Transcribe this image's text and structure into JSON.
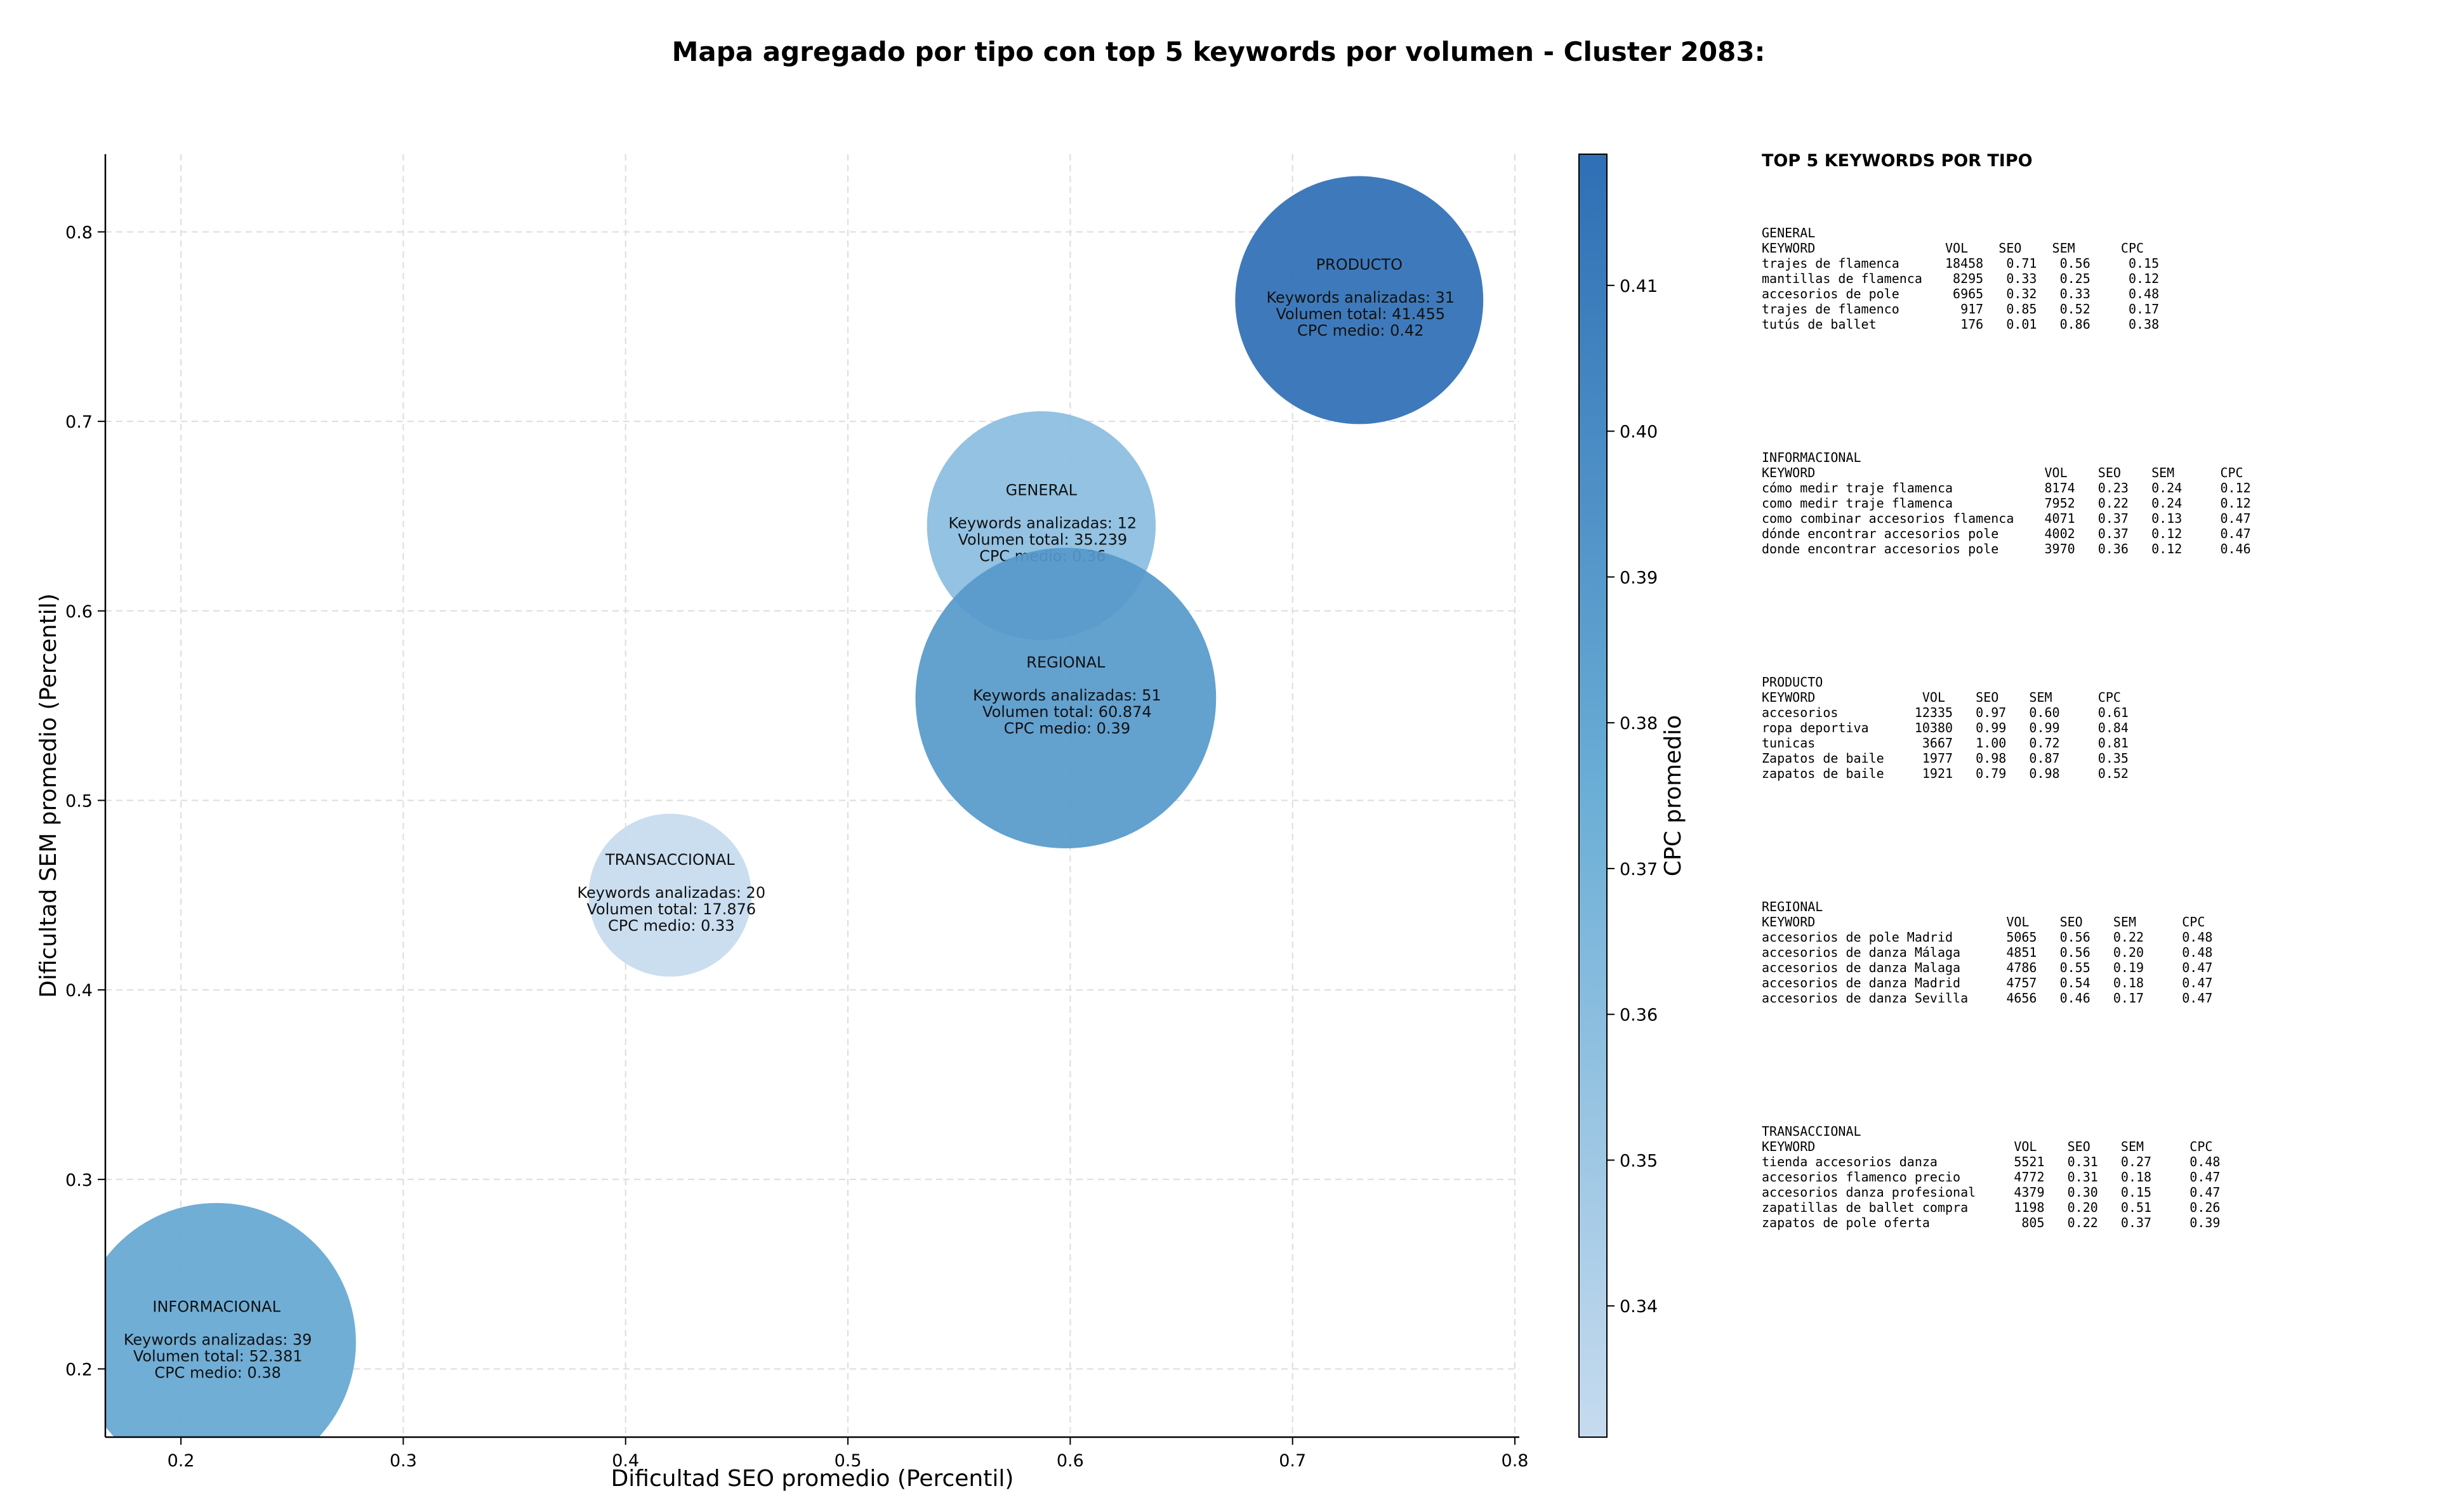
{
  "chart_data": {
    "type": "scatter",
    "title": "Mapa agregado por tipo con top 5 keywords por volumen - Cluster 2083:",
    "xlabel": "Dificultad SEO promedio (Percentil)",
    "ylabel": "Dificultad SEM promedio (Percentil)",
    "xlim": [
      0.166,
      0.802
    ],
    "ylim": [
      0.164,
      0.841
    ],
    "x_ticks": [
      "0.2",
      "0.3",
      "0.4",
      "0.5",
      "0.6",
      "0.7",
      "0.8"
    ],
    "y_ticks": [
      "0.2",
      "0.3",
      "0.4",
      "0.5",
      "0.6",
      "0.7",
      "0.8"
    ],
    "grid": true,
    "colorbar": {
      "label": "CPC promedio",
      "range": [
        0.331,
        0.419
      ],
      "ticks": [
        "0.34",
        "0.35",
        "0.36",
        "0.37",
        "0.38",
        "0.39",
        "0.40",
        "0.41"
      ],
      "colors": [
        "#c6dbef",
        "#2e6fb5"
      ]
    },
    "bubbles": [
      {
        "tipo": "INFORMACIONAL",
        "x": 0.216,
        "y": 0.214,
        "keywords": 39,
        "volumen": 52381,
        "cpc": 0.38,
        "line1": "Keywords analizadas: 39",
        "line2": "Volumen total: 52.381",
        "line3": "CPC medio: 0.38"
      },
      {
        "tipo": "TRANSACCIONAL",
        "x": 0.42,
        "y": 0.45,
        "keywords": 20,
        "volumen": 17876,
        "cpc": 0.33,
        "line1": "Keywords analizadas: 20",
        "line2": "Volumen total: 17.876",
        "line3": "CPC medio: 0.33"
      },
      {
        "tipo": "GENERAL",
        "x": 0.587,
        "y": 0.645,
        "keywords": 12,
        "volumen": 35239,
        "cpc": 0.36,
        "line1": "Keywords analizadas: 12",
        "line2": "Volumen total: 35.239",
        "line3": "CPC medio: 0.36"
      },
      {
        "tipo": "REGIONAL",
        "x": 0.598,
        "y": 0.554,
        "keywords": 51,
        "volumen": 60874,
        "cpc": 0.39,
        "line1": "Keywords analizadas: 51",
        "line2": "Volumen total: 60.874",
        "line3": "CPC medio: 0.39"
      },
      {
        "tipo": "PRODUCTO",
        "x": 0.73,
        "y": 0.764,
        "keywords": 31,
        "volumen": 41455,
        "cpc": 0.42,
        "line1": "Keywords analizadas: 31",
        "line2": "Volumen total: 41.455",
        "line3": "CPC medio: 0.42"
      }
    ]
  },
  "side_panel": {
    "title": "TOP 5 KEYWORDS POR TIPO",
    "blocks": [
      {
        "name": "GENERAL",
        "header": "KEYWORD                 VOL    SEO    SEM      CPC",
        "rows": [
          "trajes de flamenca      18458   0.71   0.56     0.15",
          "mantillas de flamenca    8295   0.33   0.25     0.12",
          "accesorios de pole       6965   0.32   0.33     0.48",
          "trajes de flamenco        917   0.85   0.52     0.17",
          "tutús de ballet           176   0.01   0.86     0.38"
        ]
      },
      {
        "name": "INFORMACIONAL",
        "header": "KEYWORD                              VOL    SEO    SEM      CPC",
        "rows": [
          "cómo medir traje flamenca            8174   0.23   0.24     0.12",
          "como medir traje flamenca            7952   0.22   0.24     0.12",
          "como combinar accesorios flamenca    4071   0.37   0.13     0.47",
          "dónde encontrar accesorios pole      4002   0.37   0.12     0.47",
          "donde encontrar accesorios pole      3970   0.36   0.12     0.46"
        ]
      },
      {
        "name": "PRODUCTO",
        "header": "KEYWORD              VOL    SEO    SEM      CPC",
        "rows": [
          "accesorios          12335   0.97   0.60     0.61",
          "ropa deportiva      10380   0.99   0.99     0.84",
          "tunicas              3667   1.00   0.72     0.81",
          "Zapatos de baile     1977   0.98   0.87     0.35",
          "zapatos de baile     1921   0.79   0.98     0.52"
        ]
      },
      {
        "name": "REGIONAL",
        "header": "KEYWORD                         VOL    SEO    SEM      CPC",
        "rows": [
          "accesorios de pole Madrid       5065   0.56   0.22     0.48",
          "accesorios de danza Málaga      4851   0.56   0.20     0.48",
          "accesorios de danza Malaga      4786   0.55   0.19     0.47",
          "accesorios de danza Madrid      4757   0.54   0.18     0.47",
          "accesorios de danza Sevilla     4656   0.46   0.17     0.47"
        ]
      },
      {
        "name": "TRANSACCIONAL",
        "header": "KEYWORD                          VOL    SEO    SEM      CPC",
        "rows": [
          "tienda accesorios danza          5521   0.31   0.27     0.48",
          "accesorios flamenco precio       4772   0.31   0.18     0.47",
          "accesorios danza profesional     4379   0.30   0.15     0.47",
          "zapatillas de ballet compra      1198   0.20   0.51     0.26",
          "zapatos de pole oferta            805   0.22   0.37     0.39"
        ]
      }
    ]
  }
}
